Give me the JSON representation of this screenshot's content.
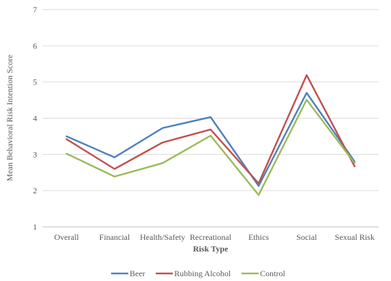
{
  "chart_data": {
    "type": "line",
    "title": "",
    "xlabel": "Risk Type",
    "ylabel": "Mean Behavioral Risk Intention Score",
    "categories": [
      "Overall",
      "Financial",
      "Health/Safety",
      "Recreational",
      "Ethics",
      "Social",
      "Sexual Risk"
    ],
    "ylim": [
      1,
      7
    ],
    "yticks": [
      "1",
      "2",
      "3",
      "4",
      "5",
      "6",
      "7"
    ],
    "grid": true,
    "legend_position": "bottom",
    "series": [
      {
        "name": "Beer",
        "color": "#4F81BD",
        "values": [
          3.5,
          2.92,
          3.73,
          4.03,
          2.13,
          4.7,
          2.8
        ]
      },
      {
        "name": "Rubbing Alcohol",
        "color": "#C0504D",
        "values": [
          3.42,
          2.6,
          3.33,
          3.69,
          2.2,
          5.19,
          2.67
        ]
      },
      {
        "name": "Control",
        "color": "#9BBB59",
        "values": [
          3.02,
          2.39,
          2.76,
          3.52,
          1.88,
          4.51,
          2.76
        ]
      }
    ]
  }
}
